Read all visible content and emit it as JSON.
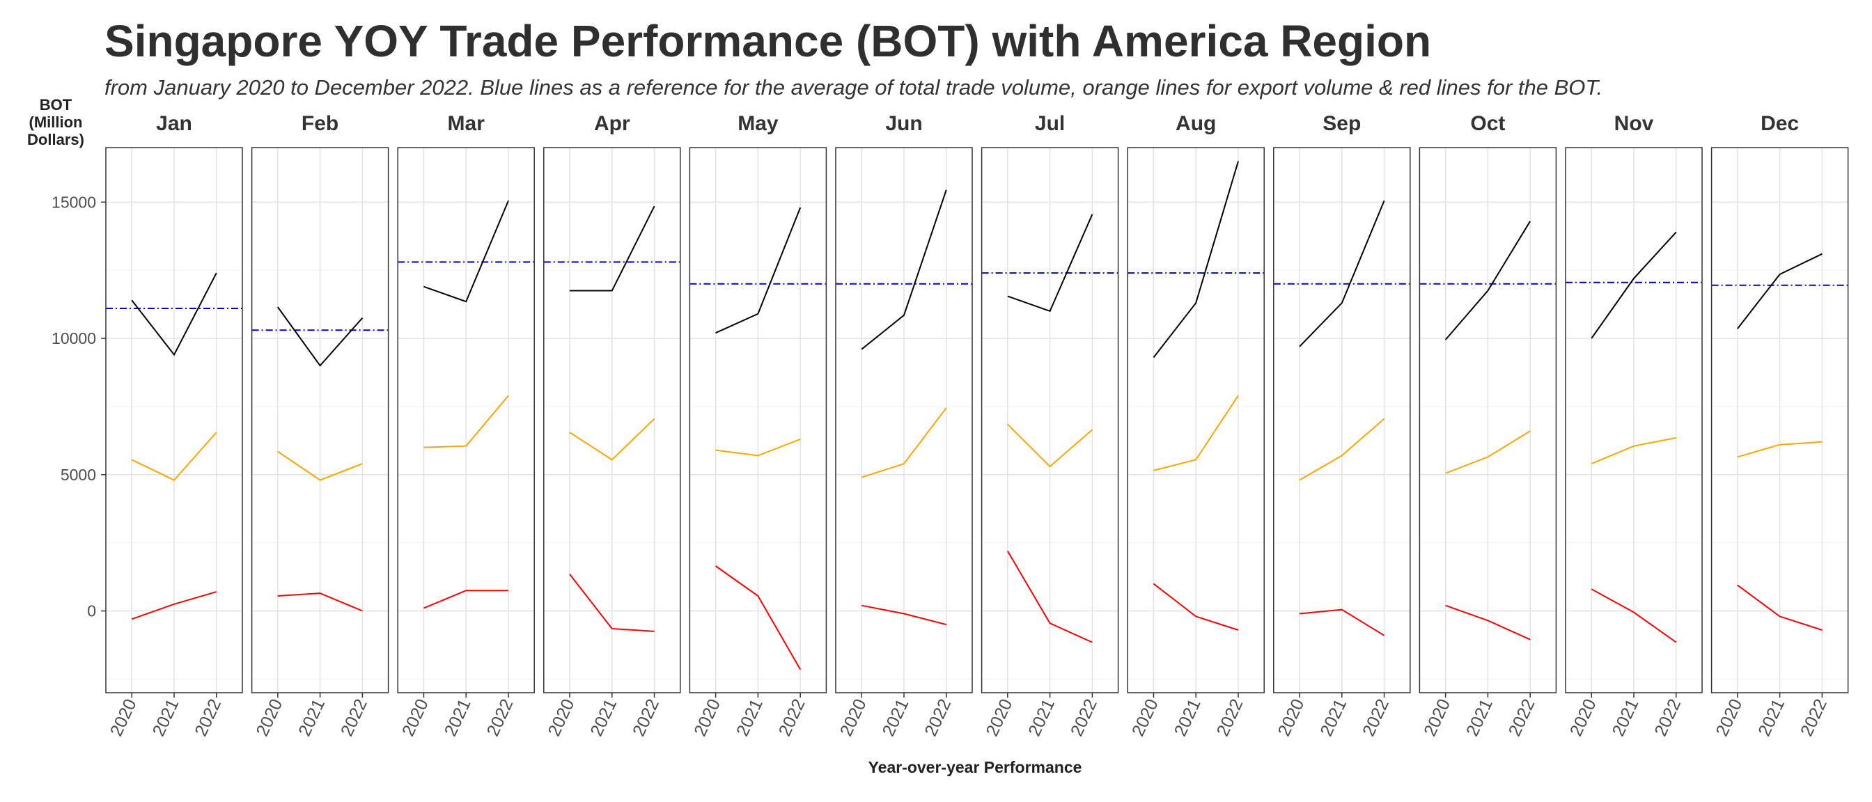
{
  "title": "Singapore YOY Trade Performance (BOT) with America Region",
  "subtitle": "from January 2020 to December 2022. Blue lines as a reference for the average of total trade volume, orange lines for export volume & red lines for the BOT.",
  "chart_data": {
    "type": "line",
    "ylabel_lines": [
      "BOT",
      "(Million",
      "Dollars)"
    ],
    "xlabel": "Year-over-year Performance",
    "x": [
      "2020",
      "2021",
      "2022"
    ],
    "ylim": [
      -3000,
      17000
    ],
    "yticks": [
      0,
      5000,
      10000,
      15000
    ],
    "grid": true,
    "legend": "none",
    "colors": {
      "total": "#000000",
      "export": "#FFA500",
      "bot": "#FF0000",
      "average": "#0000CD"
    },
    "panels": [
      {
        "month": "Jan",
        "total": [
          11400,
          9400,
          12400
        ],
        "export": [
          5550,
          4800,
          6550
        ],
        "bot": [
          -300,
          250,
          700
        ],
        "average": 11100
      },
      {
        "month": "Feb",
        "total": [
          11150,
          9000,
          10750
        ],
        "export": [
          5850,
          4800,
          5400
        ],
        "bot": [
          550,
          650,
          0
        ],
        "average": 10300
      },
      {
        "month": "Mar",
        "total": [
          11900,
          11350,
          15050
        ],
        "export": [
          6000,
          6050,
          7900
        ],
        "bot": [
          100,
          750,
          750
        ],
        "average": 12800
      },
      {
        "month": "Apr",
        "total": [
          11750,
          11750,
          14850
        ],
        "export": [
          6550,
          5550,
          7050
        ],
        "bot": [
          1350,
          -650,
          -750
        ],
        "average": 12800
      },
      {
        "month": "May",
        "total": [
          10200,
          10900,
          14800
        ],
        "export": [
          5900,
          5700,
          6300
        ],
        "bot": [
          1650,
          550,
          -2150
        ],
        "average": 12000
      },
      {
        "month": "Jun",
        "total": [
          9600,
          10850,
          15450
        ],
        "export": [
          4900,
          5400,
          7450
        ],
        "bot": [
          200,
          -100,
          -500
        ],
        "average": 12000
      },
      {
        "month": "Jul",
        "total": [
          11550,
          11000,
          14550
        ],
        "export": [
          6850,
          5300,
          6650
        ],
        "bot": [
          2200,
          -450,
          -1150
        ],
        "average": 12400
      },
      {
        "month": "Aug",
        "total": [
          9300,
          11300,
          16500
        ],
        "export": [
          5150,
          5550,
          7900
        ],
        "bot": [
          1000,
          -200,
          -700
        ],
        "average": 12400
      },
      {
        "month": "Sep",
        "total": [
          9700,
          11300,
          15050
        ],
        "export": [
          4800,
          5700,
          7050
        ],
        "bot": [
          -100,
          50,
          -900
        ],
        "average": 12000
      },
      {
        "month": "Oct",
        "total": [
          9950,
          11750,
          14300
        ],
        "export": [
          5050,
          5650,
          6600
        ],
        "bot": [
          200,
          -350,
          -1050
        ],
        "average": 12000
      },
      {
        "month": "Nov",
        "total": [
          10000,
          12200,
          13900
        ],
        "export": [
          5400,
          6050,
          6350
        ],
        "bot": [
          800,
          -50,
          -1150
        ],
        "average": 12050
      },
      {
        "month": "Dec",
        "total": [
          10350,
          12350,
          13100
        ],
        "export": [
          5650,
          6100,
          6200
        ],
        "bot": [
          950,
          -200,
          -700
        ],
        "average": 11950
      }
    ]
  }
}
